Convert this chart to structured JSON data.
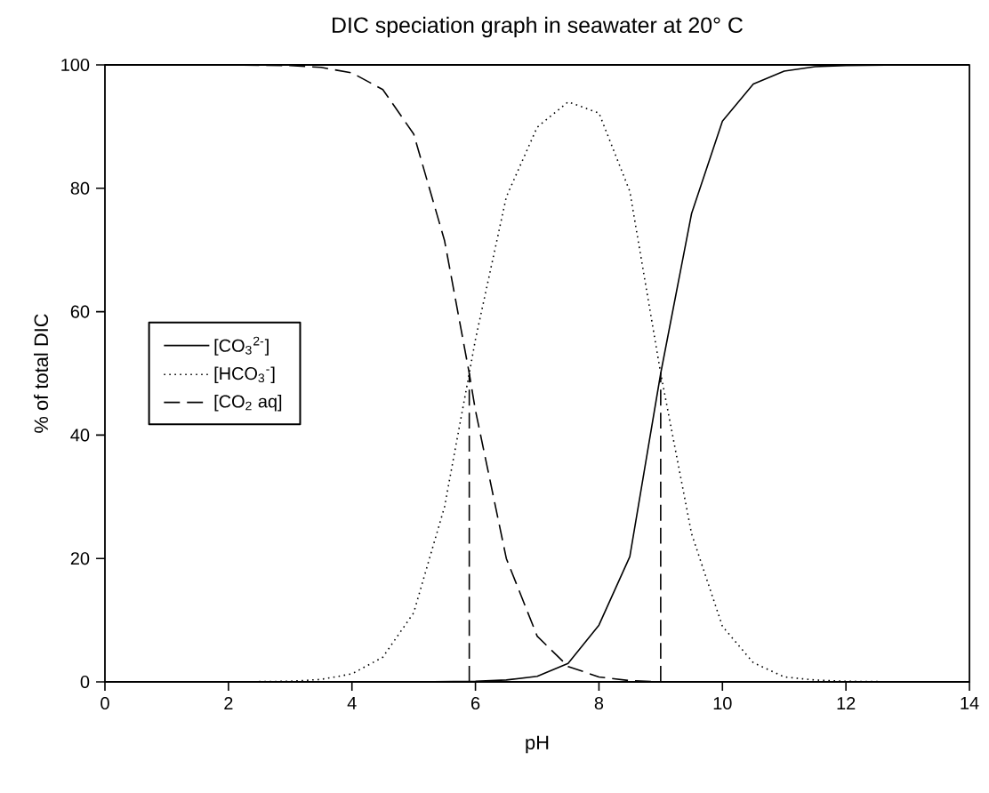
{
  "chart_data": {
    "type": "line",
    "title": "DIC speciation graph in seawater at 20° C",
    "xlabel": "pH",
    "ylabel": "% of total DIC",
    "xlim": [
      0,
      14
    ],
    "ylim": [
      0,
      100
    ],
    "xticks": [
      0,
      2,
      4,
      6,
      8,
      10,
      12,
      14
    ],
    "yticks": [
      0,
      20,
      40,
      60,
      80,
      100
    ],
    "legend": "left",
    "grid": false,
    "marker": "none",
    "series": [
      {
        "name": "[CO$_{3}$$^{2-}$]",
        "color": "#000000",
        "line_style": "solid",
        "x": [
          0,
          2,
          4,
          5,
          6,
          6.5,
          7,
          7.5,
          8,
          8.5,
          9,
          9.5,
          10,
          10.5,
          11,
          11.5,
          12,
          13,
          14
        ],
        "values": [
          0,
          0,
          0,
          0,
          0.1,
          0.3,
          0.9,
          3,
          9.2,
          20.3,
          50,
          75.9,
          90.9,
          96.9,
          99,
          99.7,
          99.9,
          100,
          100
        ]
      },
      {
        "name": "[HCO$_{3}$$^{-}$]",
        "color": "#000000",
        "line_style": "dotted",
        "x": [
          0,
          2,
          3,
          3.5,
          4,
          4.5,
          5,
          5.5,
          5.9,
          6,
          6.5,
          7,
          7.5,
          8,
          8.5,
          9,
          9.5,
          10,
          10.5,
          11,
          11.5,
          12,
          13,
          14
        ],
        "values": [
          0,
          0,
          0.1,
          0.4,
          1.3,
          4,
          11.2,
          28.4,
          50,
          55.5,
          78.6,
          89.9,
          94,
          92.2,
          79.5,
          50,
          24,
          9,
          3.1,
          0.8,
          0.3,
          0.1,
          0,
          0
        ]
      },
      {
        "name": "[CO$_{2}$ aq]",
        "color": "#000000",
        "line_style": "dashed",
        "x": [
          0,
          2,
          3,
          3.5,
          4,
          4.5,
          5,
          5.5,
          5.9,
          6,
          6.5,
          7,
          7.5,
          8,
          8.5,
          9,
          10,
          12,
          14
        ],
        "values": [
          100,
          100,
          99.9,
          99.6,
          98.7,
          96,
          88.8,
          71.5,
          50,
          44,
          20,
          7.4,
          2.5,
          0.8,
          0.2,
          0,
          0,
          0,
          0
        ]
      },
      {
        "color": "#000000",
        "line_style": "dashed",
        "x": [
          5.9,
          5.9
        ],
        "values": [
          0,
          50
        ]
      },
      {
        "color": "#000000",
        "line_style": "dashed",
        "x": [
          9,
          9
        ],
        "values": [
          0,
          50
        ]
      }
    ]
  }
}
